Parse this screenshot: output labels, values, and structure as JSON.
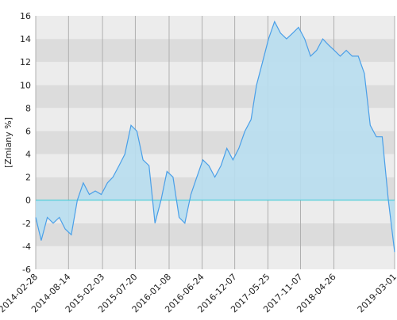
{
  "chart_data": {
    "type": "area",
    "y_label": "[Zmiany %]",
    "x": [
      "2014-02-28",
      "2014-03-28",
      "2014-04-28",
      "2014-05-28",
      "2014-06-28",
      "2014-07-28",
      "2014-08-28",
      "2014-09-28",
      "2014-10-28",
      "2014-11-28",
      "2014-12-28",
      "2015-01-28",
      "2015-02-28",
      "2015-03-28",
      "2015-04-28",
      "2015-05-28",
      "2015-06-28",
      "2015-07-28",
      "2015-08-28",
      "2015-09-28",
      "2015-10-28",
      "2015-11-28",
      "2015-12-28",
      "2016-01-28",
      "2016-02-28",
      "2016-03-28",
      "2016-04-28",
      "2016-05-28",
      "2016-06-28",
      "2016-07-28",
      "2016-08-28",
      "2016-09-28",
      "2016-10-28",
      "2016-11-28",
      "2016-12-28",
      "2017-01-28",
      "2017-02-28",
      "2017-03-28",
      "2017-04-28",
      "2017-05-28",
      "2017-06-28",
      "2017-07-28",
      "2017-08-28",
      "2017-09-28",
      "2017-10-28",
      "2017-11-28",
      "2017-12-28",
      "2018-01-28",
      "2018-02-28",
      "2018-03-28",
      "2018-04-28",
      "2018-05-28",
      "2018-06-28",
      "2018-07-28",
      "2018-08-28",
      "2018-09-28",
      "2018-10-28",
      "2018-11-28",
      "2018-12-28",
      "2019-01-28",
      "2019-03-01"
    ],
    "values": [
      -1.5,
      -3.5,
      -1.5,
      -2,
      -1.5,
      -2.5,
      -3,
      0,
      1.5,
      0.5,
      0.8,
      0.5,
      1.5,
      2,
      3,
      4,
      6.5,
      6,
      3.5,
      3,
      -2,
      0,
      2.5,
      2,
      -1.5,
      -2,
      0.5,
      2,
      3.5,
      3,
      2,
      3,
      4.5,
      3.5,
      4.5,
      6,
      7,
      10,
      12,
      14,
      15.5,
      14.5,
      14,
      14.5,
      15,
      14,
      12.5,
      13,
      14,
      13.5,
      13,
      12.5,
      13,
      12.5,
      12.5,
      11,
      6.5,
      5.5,
      5.5,
      0,
      -4.5
    ],
    "color": "#4a9fe8",
    "fill": "#b8def0",
    "zero_color": "#33c9d6",
    "band_colors": [
      "#ececec",
      "#dcdcdc"
    ],
    "ylim": [
      -6,
      16
    ],
    "yticks": [
      -6,
      -4,
      -2,
      0,
      2,
      4,
      6,
      8,
      10,
      12,
      14,
      16
    ],
    "xlim": [
      "2014-02-28",
      "2019-03-01"
    ],
    "xticks": [
      "2014-02-28",
      "2014-08-14",
      "2015-02-03",
      "2015-07-20",
      "2016-01-08",
      "2016-06-24",
      "2016-12-07",
      "2017-05-25",
      "2017-11-07",
      "2018-04-26",
      "2019-03-01"
    ],
    "grid": true
  }
}
